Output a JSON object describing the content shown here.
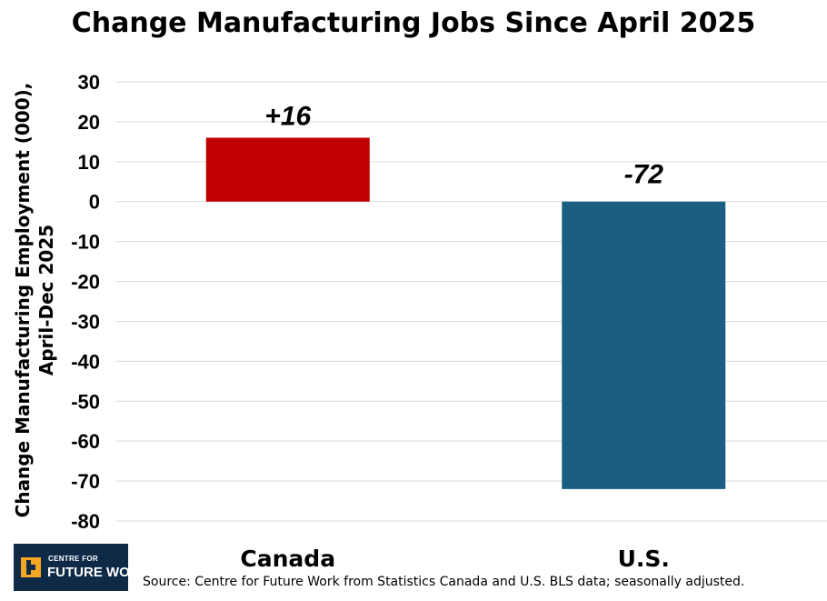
{
  "chart_data": {
    "type": "bar",
    "title": "Change Manufacturing Jobs Since April 2025",
    "xlabel": "",
    "ylabel_lines": [
      "Change Manufacturing Employment (000),",
      "April-Dec 2025"
    ],
    "categories": [
      "Canada",
      "U.S."
    ],
    "values": [
      16,
      -72
    ],
    "data_labels": [
      "+16",
      "-72"
    ],
    "bar_colors": [
      "#c00000",
      "#1a5e82"
    ],
    "ylim": [
      -80,
      30
    ],
    "yticks": [
      30,
      20,
      10,
      0,
      -10,
      -20,
      -30,
      -40,
      -50,
      -60,
      -70,
      -80
    ],
    "grid": true,
    "gridline_color": "#d9d9d9"
  },
  "source_note": "Source: Centre for Future Work from Statistics Canada and U.S. BLS data; seasonally adjusted.",
  "logo": {
    "line1": "CENTRE FOR",
    "line2": "FUTURE WORK",
    "accent_color": "#f5a623",
    "background_color": "#0e2a47"
  }
}
